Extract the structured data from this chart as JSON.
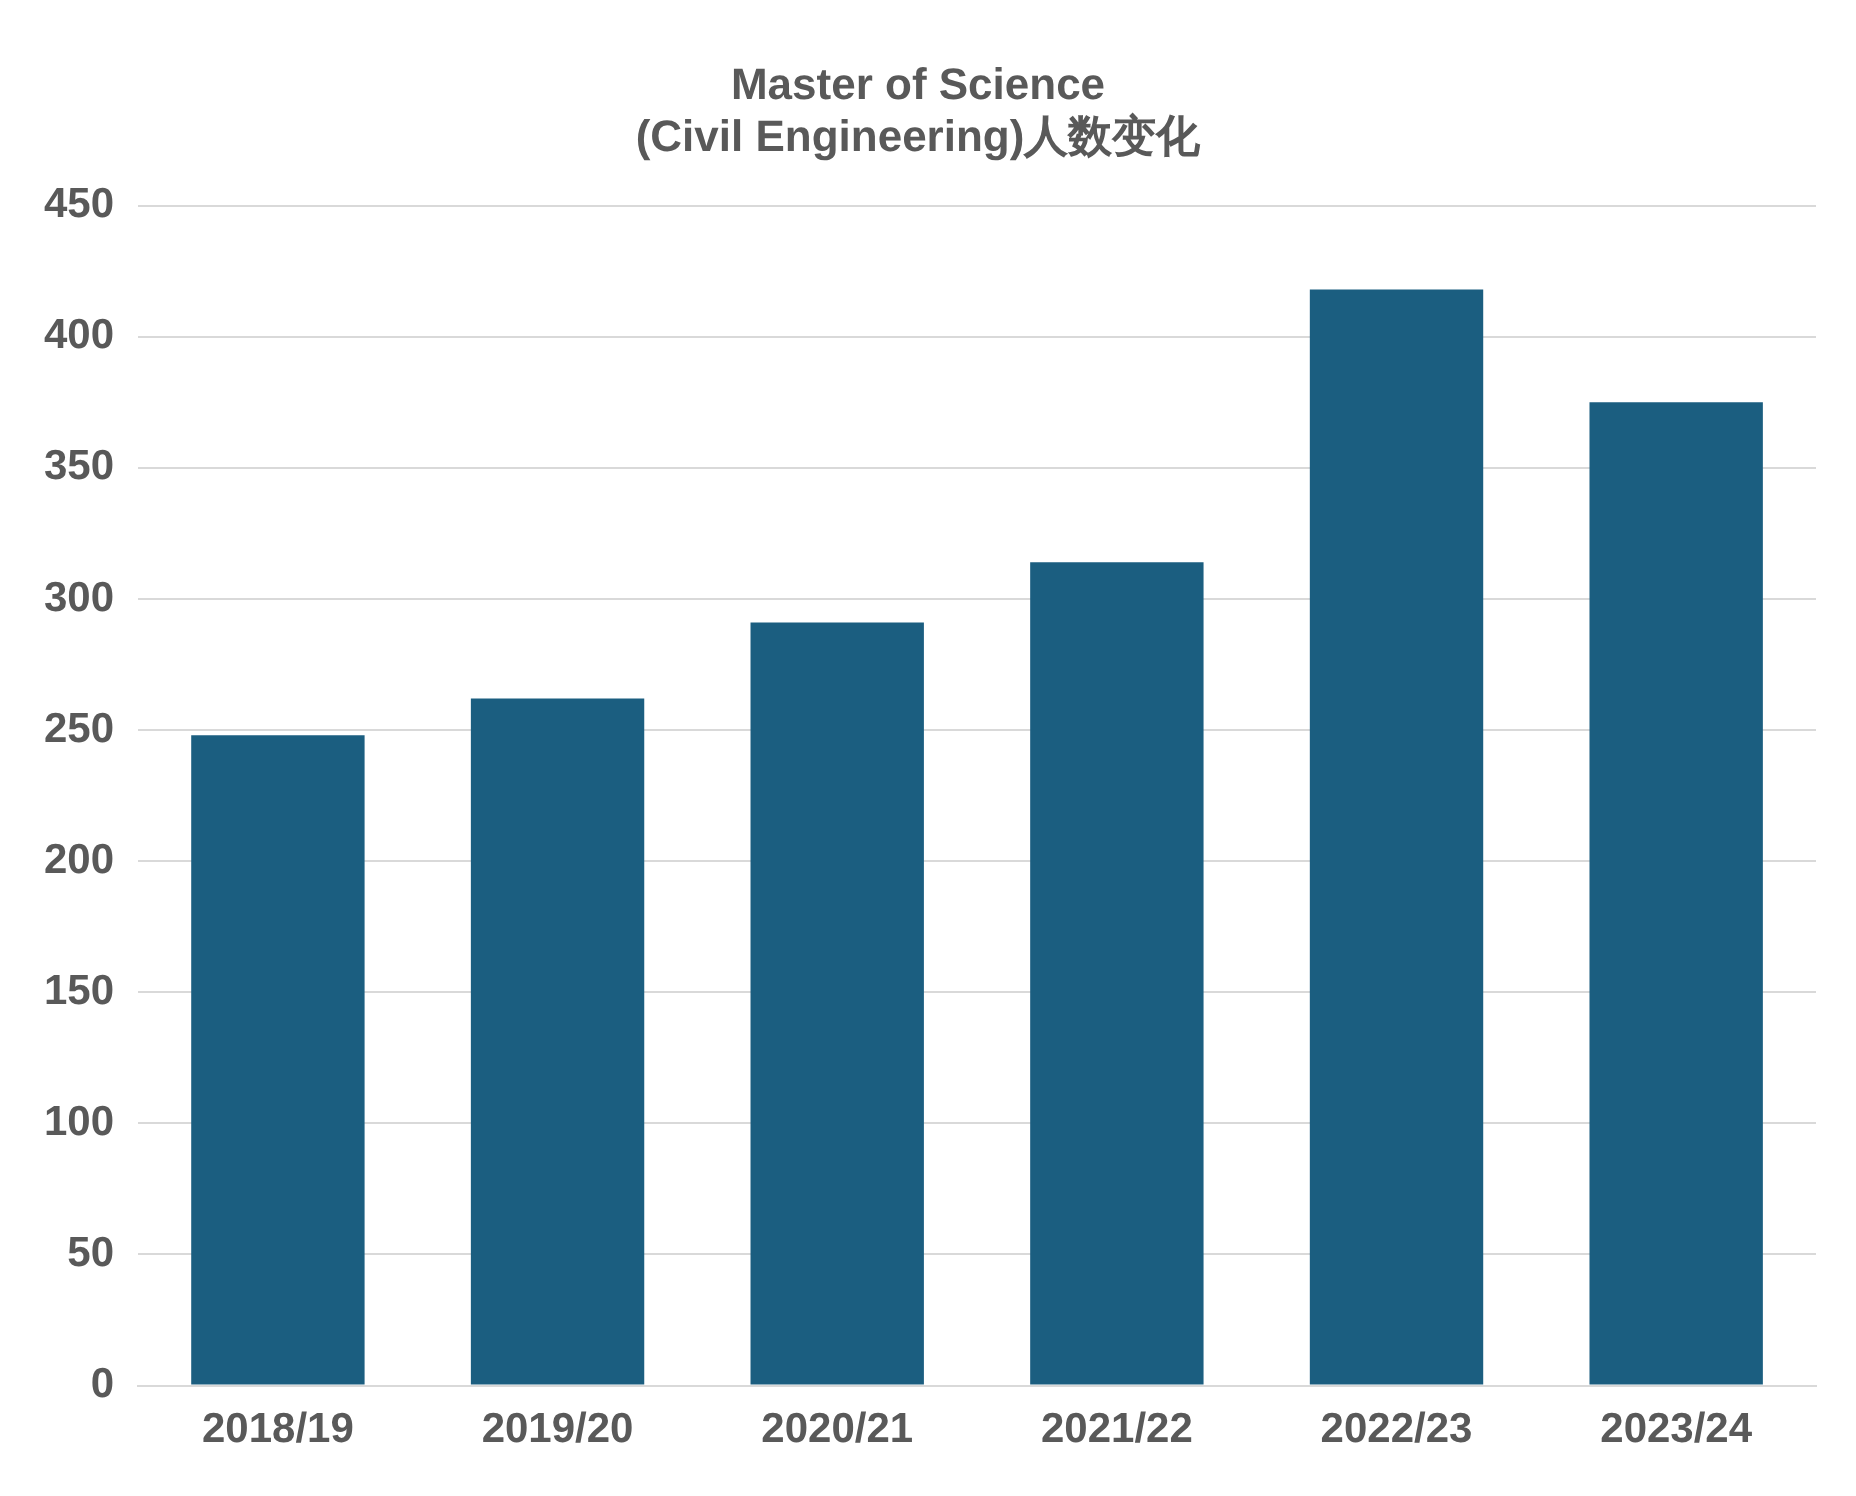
{
  "chart_data": {
    "type": "bar",
    "title": "Master of Science\n(Civil Engineering)人数变化",
    "categories": [
      "2018/19",
      "2019/20",
      "2020/21",
      "2021/22",
      "2022/23",
      "2023/24"
    ],
    "values": [
      248,
      262,
      291,
      314,
      418,
      375
    ],
    "color": "#1b5e80",
    "ylim": [
      0,
      450
    ],
    "yticks": [
      0,
      50,
      100,
      150,
      200,
      250,
      300,
      350,
      400,
      450
    ],
    "grid": "y",
    "legend": false
  }
}
